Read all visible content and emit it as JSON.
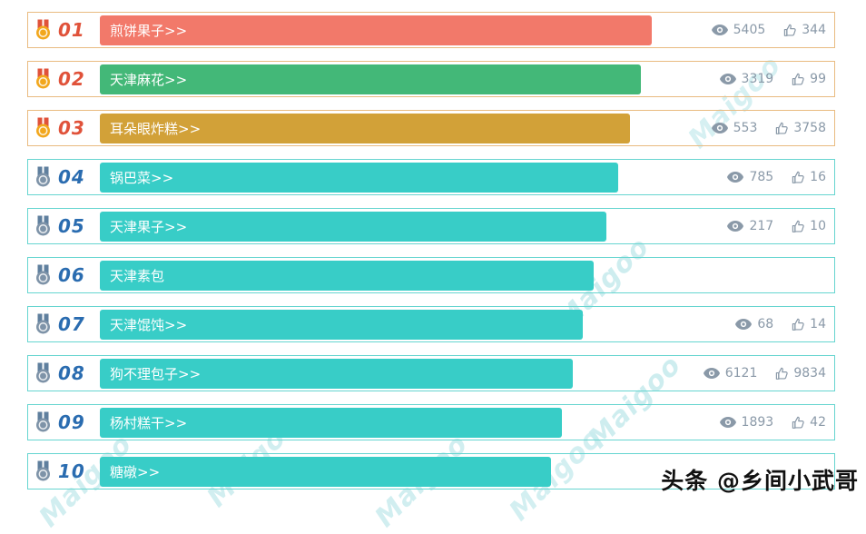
{
  "rows": [
    {
      "rank": "01",
      "label": "煎饼果子>>",
      "views": "5405",
      "likes": "344",
      "tier": "top",
      "bar_color": "#f2796a",
      "width_pct": 75.2,
      "has_stats": true
    },
    {
      "rank": "02",
      "label": "天津麻花>>",
      "views": "3319",
      "likes": "99",
      "tier": "top",
      "bar_color": "#43b878",
      "width_pct": 73.7,
      "has_stats": true
    },
    {
      "rank": "03",
      "label": "耳朵眼炸糕>>",
      "views": "553",
      "likes": "3758",
      "tier": "top",
      "bar_color": "#d2a138",
      "width_pct": 72.2,
      "has_stats": true
    },
    {
      "rank": "04",
      "label": "锅巴菜>>",
      "views": "785",
      "likes": "16",
      "tier": "normal",
      "bar_color": "#38cdc7",
      "width_pct": 70.6,
      "has_stats": true
    },
    {
      "rank": "05",
      "label": "天津果子>>",
      "views": "217",
      "likes": "10",
      "tier": "normal",
      "bar_color": "#38cdc7",
      "width_pct": 69.0,
      "has_stats": true
    },
    {
      "rank": "06",
      "label": "天津素包",
      "views": "",
      "likes": "",
      "tier": "normal",
      "bar_color": "#38cdc7",
      "width_pct": 67.3,
      "has_stats": false
    },
    {
      "rank": "07",
      "label": "天津馄饨>>",
      "views": "68",
      "likes": "14",
      "tier": "normal",
      "bar_color": "#38cdc7",
      "width_pct": 65.8,
      "has_stats": true
    },
    {
      "rank": "08",
      "label": "狗不理包子>>",
      "views": "6121",
      "likes": "9834",
      "tier": "normal",
      "bar_color": "#38cdc7",
      "width_pct": 64.4,
      "has_stats": true
    },
    {
      "rank": "09",
      "label": "杨村糕干>>",
      "views": "1893",
      "likes": "42",
      "tier": "normal",
      "bar_color": "#38cdc7",
      "width_pct": 62.9,
      "has_stats": true
    },
    {
      "rank": "10",
      "label": "糖礅>>",
      "views": "",
      "likes": "",
      "tier": "normal",
      "bar_color": "#38cdc7",
      "width_pct": 61.4,
      "has_stats": false
    }
  ],
  "chart_data": {
    "type": "bar",
    "orientation": "horizontal",
    "categories": [
      "煎饼果子",
      "天津麻花",
      "耳朵眼炸糕",
      "锅巴菜",
      "天津果子",
      "天津素包",
      "天津馄饨",
      "狗不理包子",
      "杨村糕干",
      "糖礅"
    ],
    "ranks": [
      "01",
      "02",
      "03",
      "04",
      "05",
      "06",
      "07",
      "08",
      "09",
      "10"
    ],
    "series": [
      {
        "name": "views",
        "values": [
          5405,
          3319,
          553,
          785,
          217,
          null,
          68,
          6121,
          1893,
          null
        ]
      },
      {
        "name": "likes",
        "values": [
          344,
          99,
          3758,
          16,
          10,
          null,
          14,
          9834,
          42,
          null
        ]
      }
    ],
    "bar_length_note": "bar length encodes rank order (top item longest), not the view/like values",
    "legend_position": "none",
    "grid": false
  },
  "colors": {
    "top_border": "#e9bb80",
    "normal_border": "#66d5d0",
    "top_rank": "#e0523a",
    "normal_rank": "#2a6cb0",
    "stats": "#8a99a8",
    "watermark": "#c9ecee",
    "medal_top": "#f2a71d",
    "medal_top_ribbon": "#e0523a",
    "medal_normal": "#7e93a8",
    "medal_normal_ribbon": "#5f7f9e",
    "credit": "#111111"
  },
  "watermark_text": "Maigoo",
  "credit": "头条 @乡间小武哥"
}
